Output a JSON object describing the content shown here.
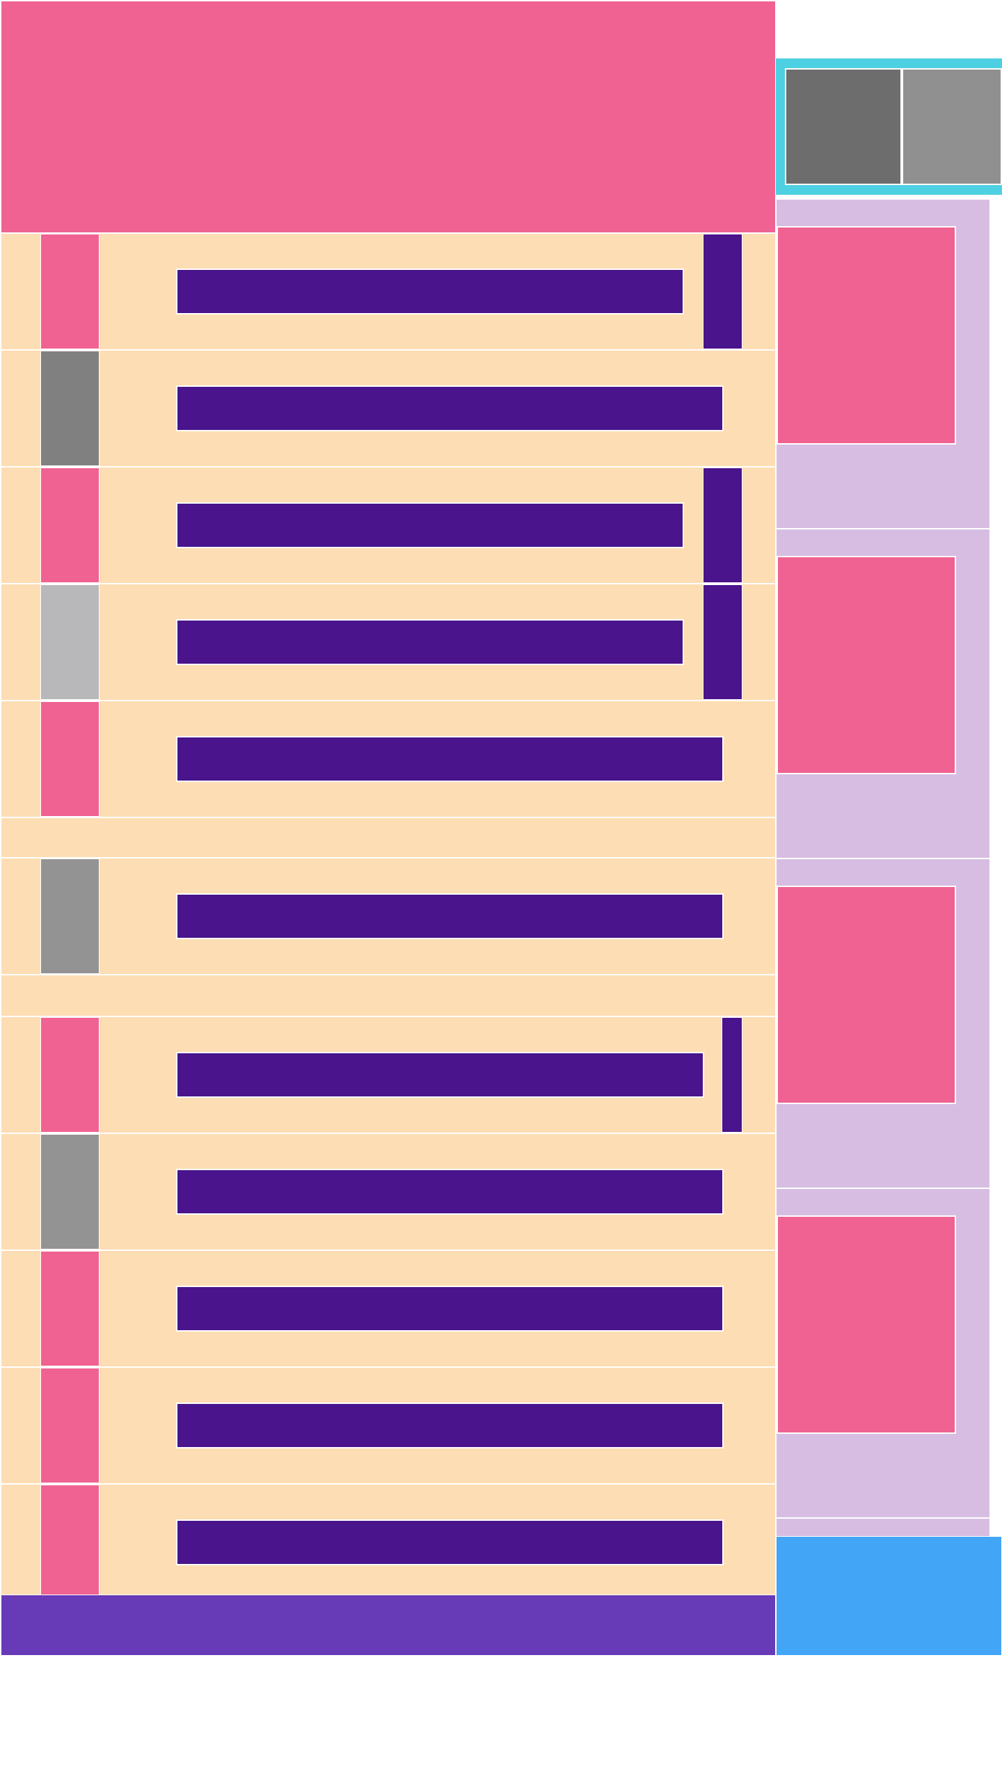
{
  "colors": {
    "header": "#f06292",
    "row_background": "#fdddb3",
    "bar": "#4a148c",
    "footer": "#673ab7",
    "tab_bar": "#4dd0e1",
    "panel": "#d7bde2",
    "panel_card": "#f06292",
    "cta": "#42a5f5"
  },
  "tabs": [
    {
      "color": "#6d6d6d"
    },
    {
      "color": "#909090"
    }
  ],
  "rows": [
    {
      "thumb_color": "#f06292",
      "has_side_bar": true
    },
    {
      "thumb_color": "#808080",
      "has_side_bar": false
    },
    {
      "thumb_color": "#f06292",
      "has_side_bar": true
    },
    {
      "thumb_color": "#b8b8ba",
      "has_side_bar": true
    },
    {
      "thumb_color": "#f06292",
      "has_side_bar": false
    },
    {
      "thumb_color": "#939393",
      "has_side_bar": false
    },
    {
      "thumb_color": "#f06292",
      "has_side_bar": true
    },
    {
      "thumb_color": "#939393",
      "has_side_bar": false
    },
    {
      "thumb_color": "#f06292",
      "has_side_bar": false
    },
    {
      "thumb_color": "#f06292",
      "has_side_bar": false
    },
    {
      "thumb_color": "#f06292",
      "has_side_bar": false
    }
  ]
}
